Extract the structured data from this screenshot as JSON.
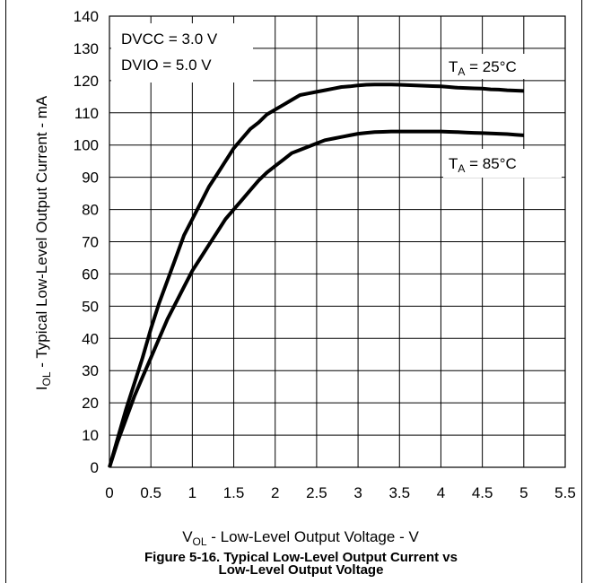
{
  "chart_data": {
    "type": "line",
    "title": "Figure 5-16. Typical Low-Level Output Current vs",
    "subtitle": "Low-Level Output Voltage",
    "ylabel": {
      "main": "I",
      "sub": "OL",
      "rest": " - Typical Low-Level Output Current - mA"
    },
    "xlabel": {
      "main": "V",
      "sub": "OL",
      "rest": " - Low-Level Output Voltage - V"
    },
    "xlim": [
      0,
      5.5
    ],
    "ylim": [
      0,
      140
    ],
    "xticks": [
      "0",
      "0.5",
      "1",
      "1.5",
      "2",
      "2.5",
      "3",
      "3.5",
      "4",
      "4.5",
      "5",
      "5.5"
    ],
    "yticks": [
      "0",
      "10",
      "20",
      "30",
      "40",
      "50",
      "60",
      "70",
      "80",
      "90",
      "100",
      "110",
      "120",
      "130",
      "140"
    ],
    "grid": true,
    "annotations": [
      "DVCC = 3.0 V",
      "DVIO = 5.0 V"
    ],
    "series": [
      {
        "name": "TA = 25°C",
        "label": {
          "main": "T",
          "sub": "A",
          "rest": " = 25°C"
        },
        "x": [
          0,
          0.1,
          0.2,
          0.3,
          0.4,
          0.5,
          0.6,
          0.7,
          0.8,
          0.9,
          1.0,
          1.1,
          1.2,
          1.3,
          1.4,
          1.5,
          1.6,
          1.7,
          1.8,
          1.9,
          2.0,
          2.1,
          2.2,
          2.3,
          2.4,
          2.5,
          2.6,
          2.7,
          2.8,
          2.9,
          3.0,
          3.1,
          3.2,
          3.3,
          3.4,
          3.5,
          3.6,
          3.7,
          3.8,
          3.9,
          4.0,
          4.1,
          4.2,
          4.3,
          4.4,
          4.5,
          4.6,
          4.7,
          4.8,
          4.9,
          5.0
        ],
        "y": [
          0,
          9,
          18,
          26,
          34,
          43,
          51,
          58,
          65,
          72,
          77,
          82,
          87,
          91,
          95,
          99,
          102,
          105,
          107,
          109.5,
          111,
          112.5,
          114,
          115.5,
          116,
          116.5,
          117,
          117.5,
          118,
          118.2,
          118.5,
          118.7,
          118.8,
          118.8,
          118.8,
          118.7,
          118.6,
          118.5,
          118.4,
          118.3,
          118.2,
          118.0,
          117.8,
          117.7,
          117.6,
          117.5,
          117.3,
          117.2,
          117.0,
          116.9,
          116.8
        ]
      },
      {
        "name": "TA = 85°C",
        "label": {
          "main": "T",
          "sub": "A",
          "rest": " = 85°C"
        },
        "x": [
          0,
          0.1,
          0.2,
          0.3,
          0.4,
          0.5,
          0.6,
          0.7,
          0.8,
          0.9,
          1.0,
          1.1,
          1.2,
          1.3,
          1.4,
          1.5,
          1.6,
          1.7,
          1.8,
          1.9,
          2.0,
          2.1,
          2.2,
          2.3,
          2.4,
          2.5,
          2.6,
          2.7,
          2.8,
          2.9,
          3.0,
          3.1,
          3.2,
          3.3,
          3.4,
          3.5,
          3.6,
          3.7,
          3.8,
          3.9,
          4.0,
          4.1,
          4.2,
          4.3,
          4.4,
          4.5,
          4.6,
          4.7,
          4.8,
          4.9,
          5.0
        ],
        "y": [
          0,
          8,
          15,
          22,
          28,
          34,
          40,
          46,
          51,
          56,
          61,
          65,
          69,
          73,
          77,
          80,
          83,
          86,
          89,
          91.5,
          93.5,
          95.5,
          97.5,
          98.5,
          99.5,
          100.5,
          101.5,
          102,
          102.5,
          103,
          103.5,
          103.8,
          104,
          104.1,
          104.2,
          104.2,
          104.2,
          104.2,
          104.2,
          104.2,
          104.2,
          104.1,
          104.0,
          103.9,
          103.8,
          103.7,
          103.6,
          103.5,
          103.4,
          103.2,
          103.0
        ]
      }
    ],
    "line_color": "#000000",
    "grid_color": "#000000"
  }
}
